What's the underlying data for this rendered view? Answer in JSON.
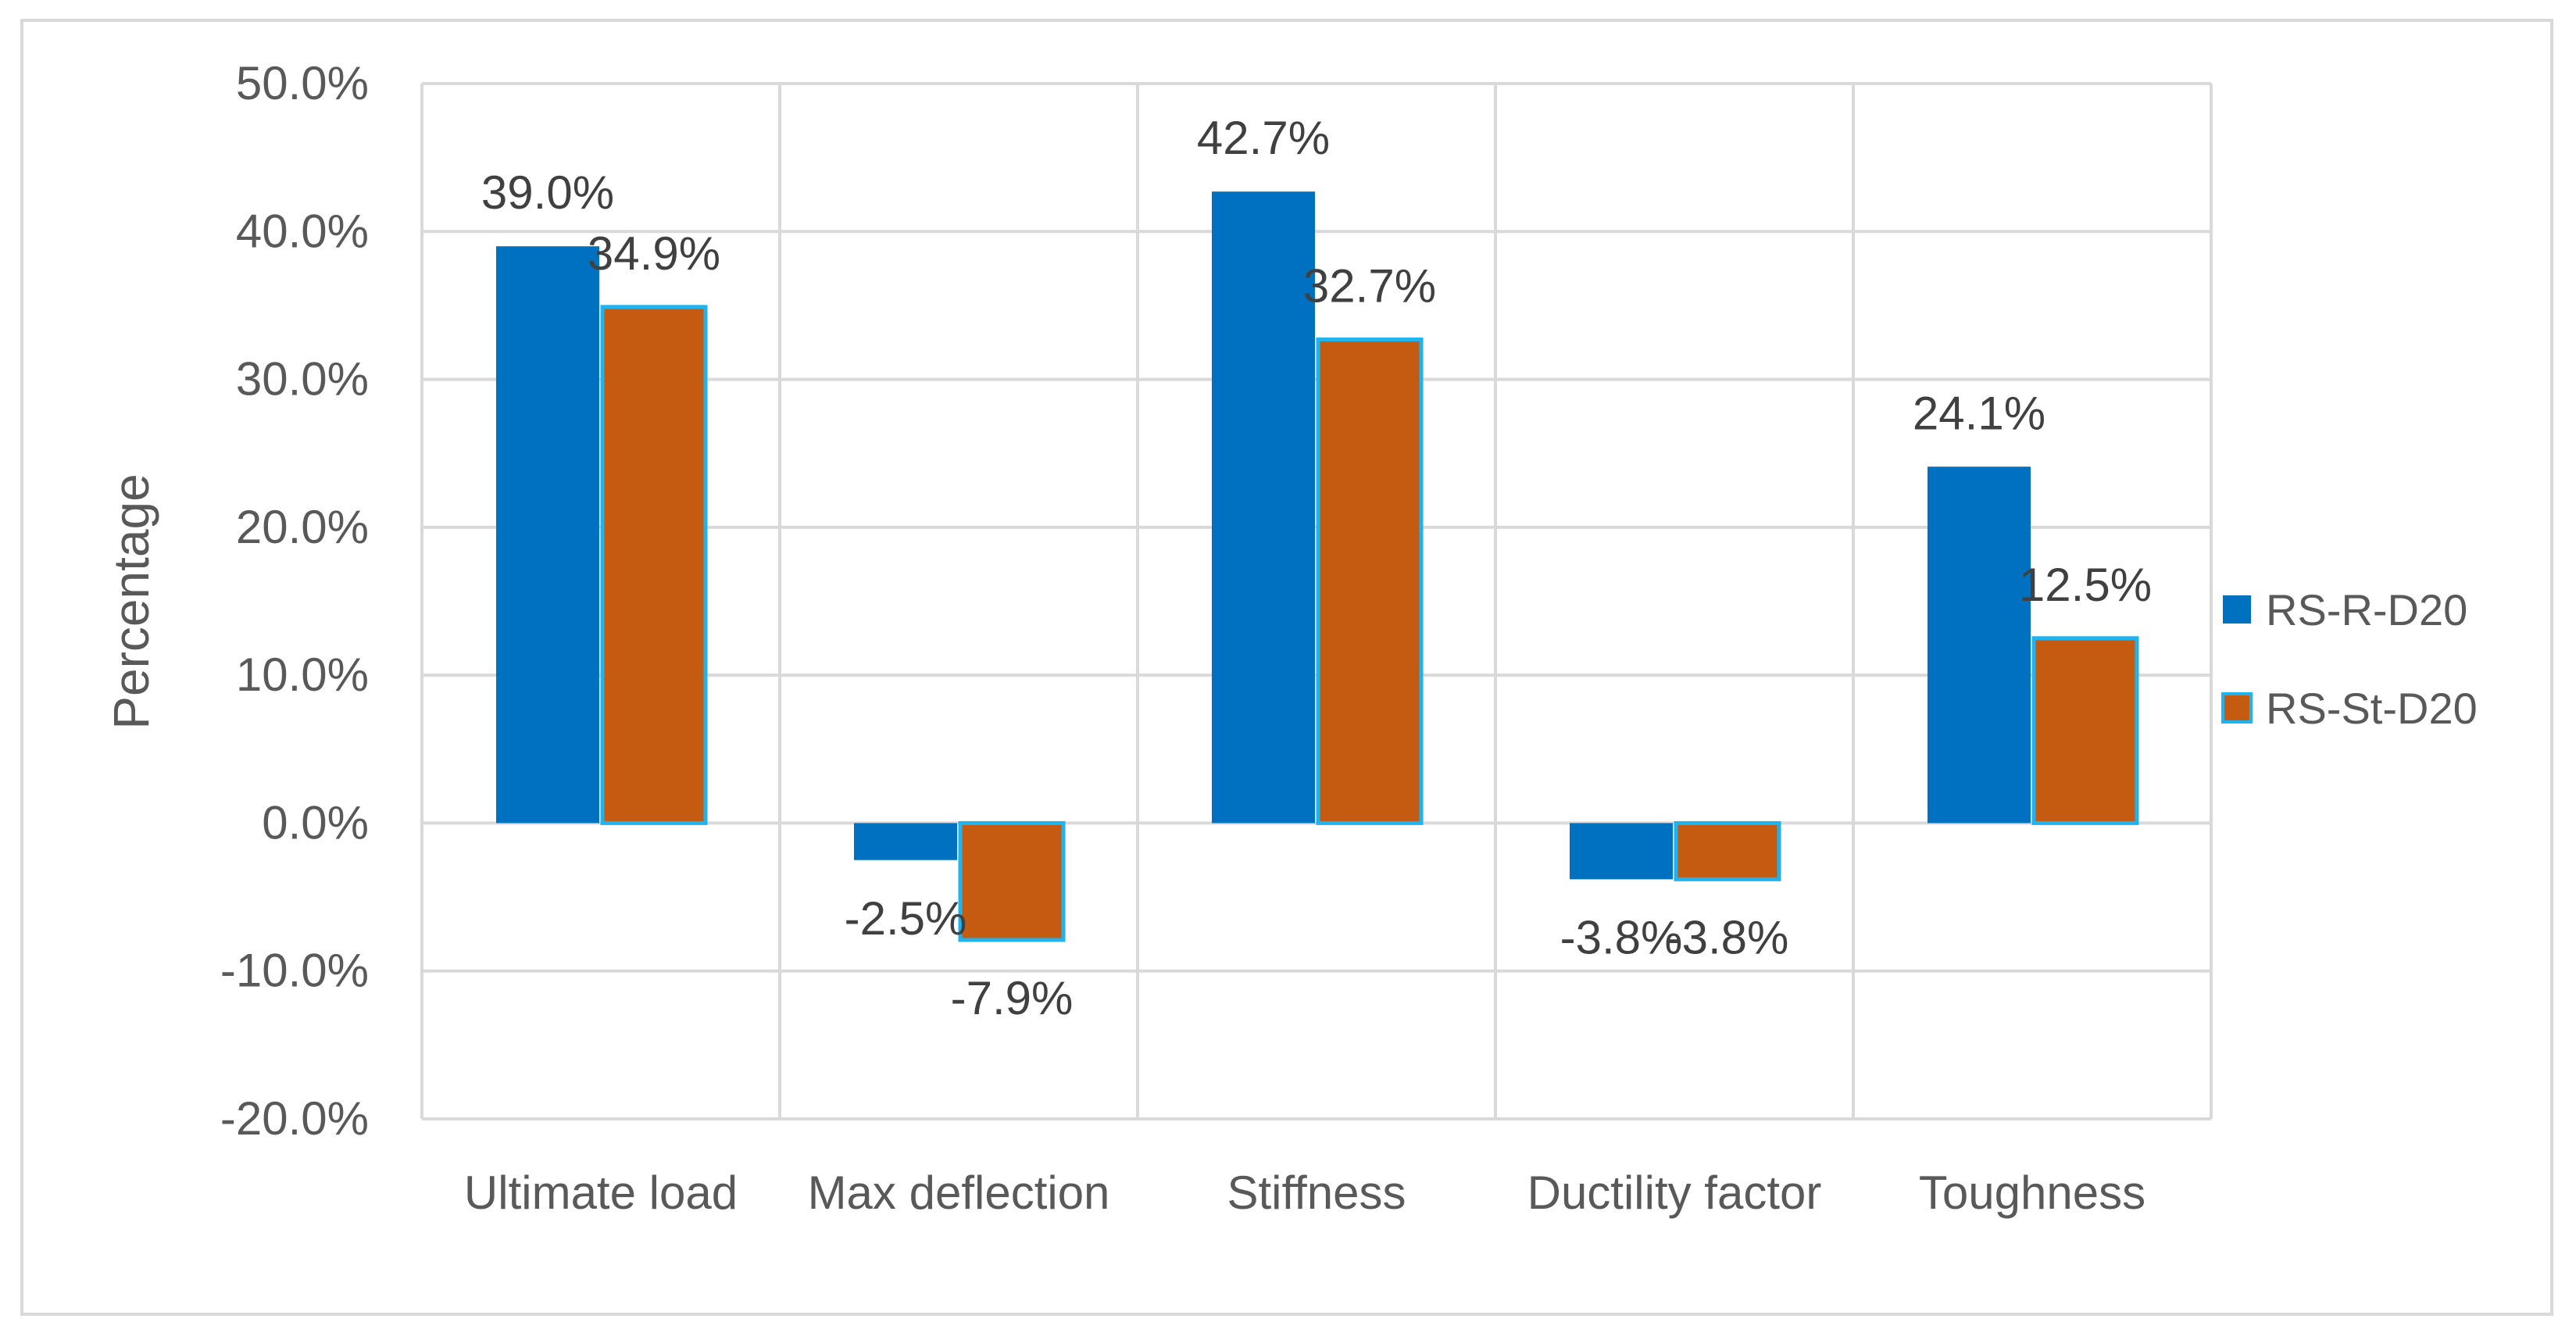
{
  "chart_data": {
    "type": "bar",
    "categories": [
      "Ultimate load",
      "Max deflection",
      "Stiffness",
      "Ductility factor",
      "Toughness"
    ],
    "series": [
      {
        "name": "RS-R-D20",
        "values": [
          39.0,
          -2.5,
          42.7,
          -3.8,
          24.1
        ],
        "labels": [
          "39.0%",
          "-2.5%",
          "42.7%",
          "-3.8%",
          "24.1%"
        ]
      },
      {
        "name": "RS-St-D20",
        "values": [
          34.9,
          -7.9,
          32.7,
          -3.8,
          12.5
        ],
        "labels": [
          "34.9%",
          "-7.9%",
          "32.7%",
          "-3.8%",
          "12.5%"
        ]
      }
    ],
    "ylabel": "Percentage",
    "xlabel": "",
    "title": "",
    "ylim": [
      -20,
      50
    ],
    "yticks": [
      50,
      40,
      30,
      20,
      10,
      0,
      -10,
      -20
    ],
    "ytick_labels": [
      "50.0%",
      "40.0%",
      "30.0%",
      "20.0%",
      "10.0%",
      "0.0%",
      "-10.0%",
      "-20.0%"
    ],
    "grid": true,
    "legend_position": "right",
    "colors": {
      "RS-R-D20": "#0070c0",
      "RS-St-D20": "#c55a11",
      "RS-St-D20-outline": "#1fb4f0",
      "grid": "#d9d9d9",
      "axis": "#bfbfbf"
    }
  }
}
